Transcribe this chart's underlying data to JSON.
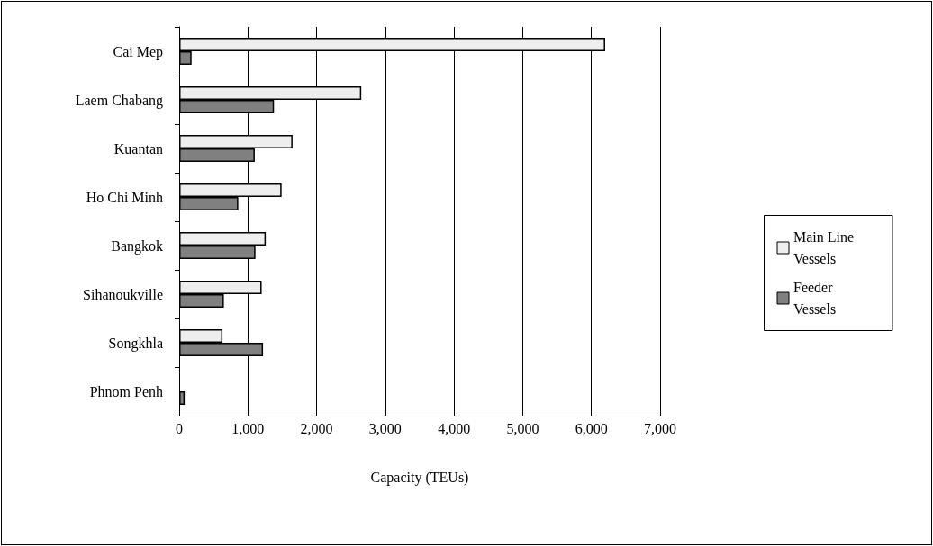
{
  "chart_data": {
    "type": "bar",
    "orientation": "horizontal",
    "xlabel": "Capacity (TEUs)",
    "categories": [
      "Cai Mep",
      "Laem Chabang",
      "Kuantan",
      "Ho Chi Minh",
      "Bangkok",
      "Sihanoukville",
      "Songkhla",
      "Phnom Penh"
    ],
    "series": [
      {
        "name": "Main Line Vessels",
        "color": "#eeeeee",
        "values": [
          6200,
          2650,
          1650,
          1490,
          1260,
          1200,
          630,
          null
        ]
      },
      {
        "name": "Feeder Vessels",
        "color": "#808080",
        "values": [
          180,
          1380,
          1100,
          860,
          1110,
          650,
          1220,
          80
        ]
      }
    ],
    "xlim": [
      0,
      7000
    ],
    "xticks": [
      0,
      {
        "value": 1000,
        "label": "1,000"
      },
      {
        "value": 2000,
        "label": "2,000"
      },
      {
        "value": 3000,
        "label": "3,000"
      },
      {
        "value": 4000,
        "label": "4,000"
      },
      {
        "value": 5000,
        "label": "5,000"
      },
      {
        "value": 6000,
        "label": "6,000"
      },
      {
        "value": 7000,
        "label": "7,000"
      }
    ],
    "grid": "x",
    "legend": "right"
  }
}
